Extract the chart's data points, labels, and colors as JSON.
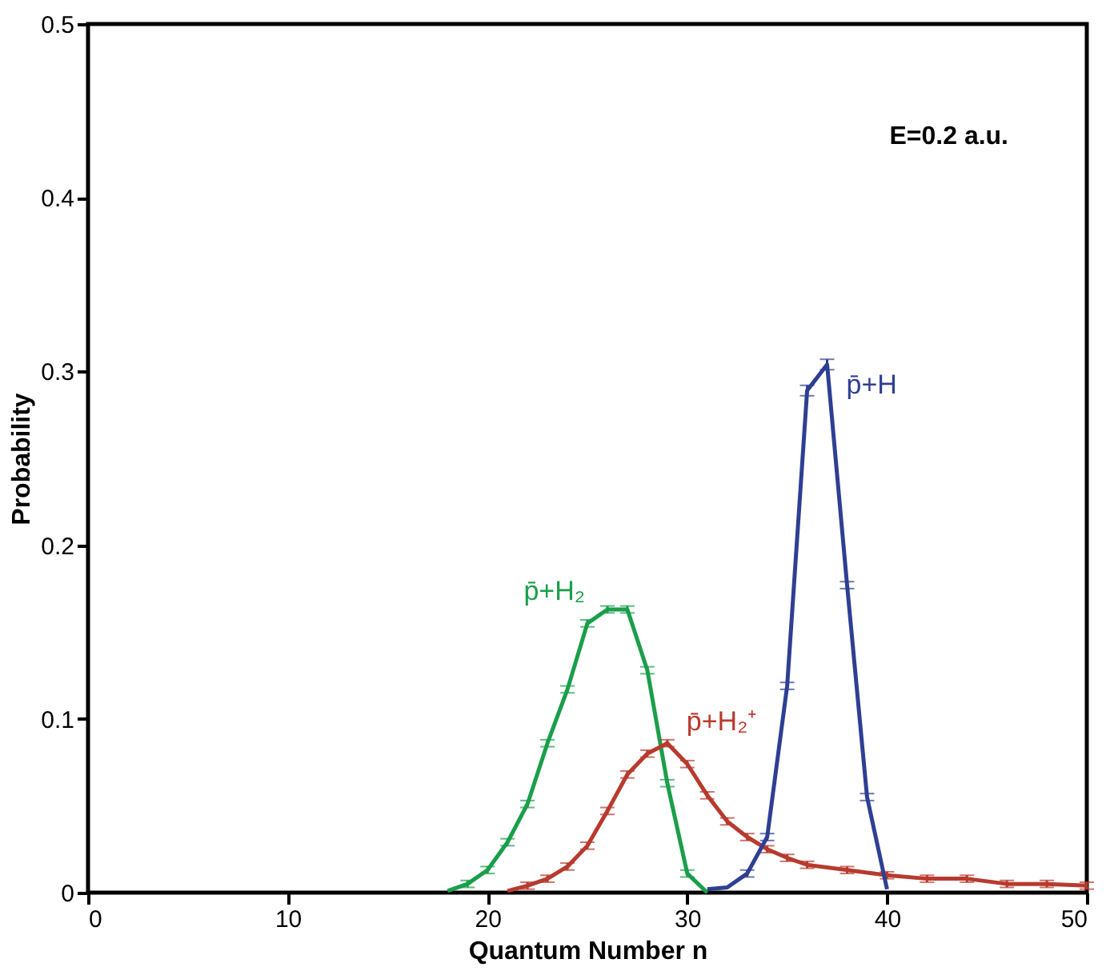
{
  "chart_data": {
    "type": "line",
    "xlabel": "Quantum Number n",
    "ylabel": "Probability",
    "xlim": [
      0,
      50
    ],
    "xticks": [
      0,
      10,
      20,
      30,
      40,
      50
    ],
    "ylim": [
      0,
      0.5
    ],
    "yticks": [
      0,
      0.1,
      0.2,
      0.3,
      0.4,
      0.5
    ],
    "grid": false,
    "annotations": [
      "E=0.2 a.u."
    ],
    "series": [
      {
        "name": "p̄+H₂",
        "color": "#1a9e4a",
        "x": [
          18,
          19,
          20,
          21,
          22,
          23,
          24,
          25,
          26,
          27,
          28,
          29,
          30,
          31
        ],
        "values": [
          0.001,
          0.005,
          0.013,
          0.029,
          0.051,
          0.086,
          0.117,
          0.155,
          0.163,
          0.163,
          0.128,
          0.063,
          0.011,
          0.0
        ],
        "errors": [
          null,
          0.002,
          0.002,
          0.002,
          0.002,
          0.002,
          0.002,
          0.002,
          0.002,
          0.002,
          0.002,
          0.002,
          0.002,
          null
        ]
      },
      {
        "name": "p̄+H₂⁺",
        "color": "#b83a2e",
        "x": [
          21,
          22,
          23,
          24,
          25,
          26,
          27,
          28,
          29,
          30,
          31,
          32,
          33,
          34,
          35,
          36,
          38,
          40,
          42,
          44,
          46,
          48,
          50
        ],
        "values": [
          0.001,
          0.004,
          0.008,
          0.015,
          0.027,
          0.047,
          0.068,
          0.08,
          0.086,
          0.074,
          0.056,
          0.041,
          0.032,
          0.025,
          0.02,
          0.016,
          0.013,
          0.01,
          0.008,
          0.008,
          0.005,
          0.005,
          0.004
        ],
        "errors": [
          null,
          0.002,
          0.002,
          0.002,
          0.002,
          0.002,
          0.002,
          0.002,
          0.002,
          0.002,
          0.002,
          0.002,
          0.002,
          0.002,
          0.002,
          0.002,
          0.002,
          0.002,
          0.002,
          0.002,
          0.002,
          0.002,
          0.002
        ]
      },
      {
        "name": "p̄+H",
        "color": "#2e3f93",
        "x": [
          31,
          32,
          33,
          34,
          35,
          36,
          37,
          38,
          39,
          40
        ],
        "values": [
          0.002,
          0.003,
          0.011,
          0.032,
          0.119,
          0.289,
          0.304,
          0.177,
          0.055,
          0.002
        ],
        "errors": [
          null,
          null,
          0.002,
          0.002,
          0.002,
          0.003,
          0.003,
          0.002,
          0.002,
          null
        ]
      }
    ]
  }
}
